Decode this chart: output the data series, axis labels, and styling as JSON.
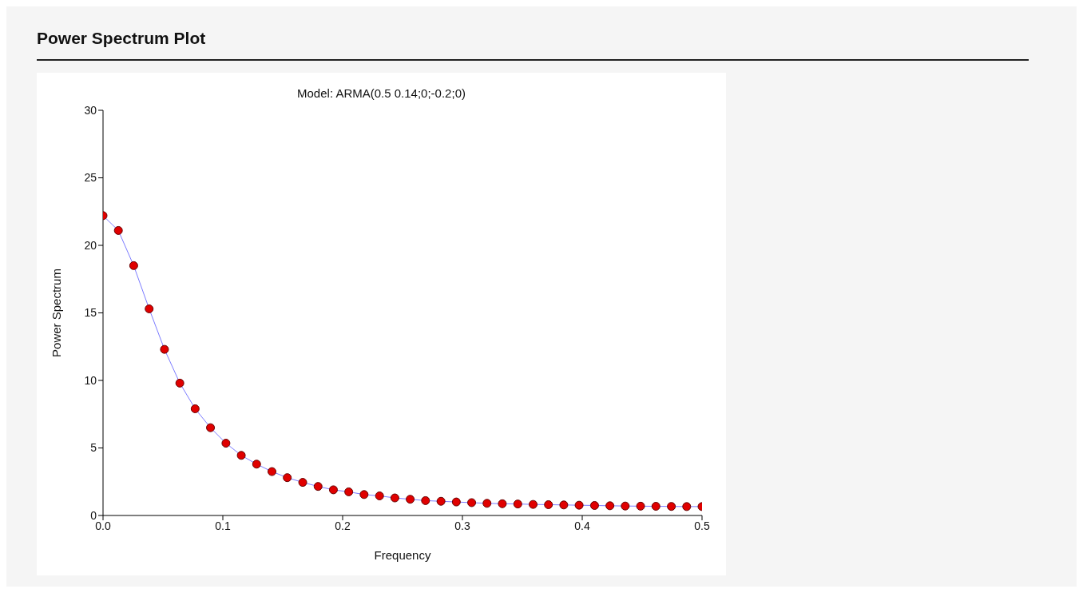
{
  "chart_data": {
    "type": "line",
    "title": "Power Spectrum Plot",
    "subtitle": "Model: ARMA(0.5 0.14;0;-0.2;0)",
    "xlabel": "Frequency",
    "ylabel": "Power Spectrum",
    "x": [
      0,
      0.0128,
      0.0256,
      0.0385,
      0.0513,
      0.0641,
      0.0769,
      0.0897,
      0.1026,
      0.1154,
      0.1282,
      0.141,
      0.1538,
      0.1667,
      0.1795,
      0.1923,
      0.2051,
      0.2179,
      0.2308,
      0.2436,
      0.2564,
      0.2692,
      0.2821,
      0.2949,
      0.3077,
      0.3205,
      0.3333,
      0.3462,
      0.359,
      0.3718,
      0.3846,
      0.3974,
      0.4103,
      0.4231,
      0.4359,
      0.4487,
      0.4615,
      0.4744,
      0.4872,
      0.5
    ],
    "series": [
      {
        "color": "#7b7bff",
        "values": [
          22.2,
          21.1,
          18.5,
          15.3,
          12.3,
          9.8,
          7.9,
          6.5,
          5.35,
          4.45,
          3.8,
          3.25,
          2.8,
          2.45,
          2.15,
          1.9,
          1.75,
          1.55,
          1.45,
          1.3,
          1.2,
          1.1,
          1.05,
          1.0,
          0.95,
          0.9,
          0.87,
          0.85,
          0.82,
          0.8,
          0.78,
          0.76,
          0.74,
          0.72,
          0.7,
          0.69,
          0.68,
          0.67,
          0.66,
          0.66
        ],
        "colors": [
          "#e00000",
          "#e00000",
          "#e00000",
          "#e00000",
          "#e00000",
          "#e00000",
          "#e00000",
          "#e00000",
          "#e00000",
          "#e00000",
          "#e00000",
          "#e00000",
          "#e00000",
          "#e00000",
          "#e00000",
          "#e00000",
          "#e00000",
          "#e00000",
          "#e00000",
          "#e00000",
          "#e00000",
          "#e00000",
          "#e00000",
          "#e00000",
          "#e00000",
          "#e00000",
          "#e00000",
          "#e00000",
          "#e00000",
          "#e00000",
          "#e00000",
          "#e00000",
          "#e00000",
          "#e00000",
          "#e00000",
          "#e00000",
          "#e00000",
          "#e00000",
          "#e00000",
          "#e00000"
        ]
      }
    ],
    "xlim": [
      0,
      0.5
    ],
    "xticks": [
      {
        "value": 0,
        "label": "0.0"
      },
      0.1,
      0.2,
      0.3,
      0.4,
      0.5
    ],
    "ylim": [
      0,
      30
    ],
    "yticks": [
      0,
      5,
      10,
      15,
      20,
      25,
      30
    ],
    "grid": false,
    "legend": false,
    "marker": "circle",
    "line_style": "solid"
  }
}
